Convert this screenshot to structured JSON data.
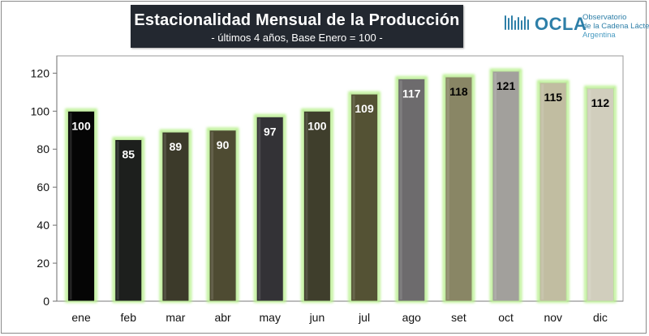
{
  "header": {
    "title": "Estacionalidad Mensual de la Producción",
    "subtitle": "- últimos 4 años, Base Enero = 100 -"
  },
  "logo": {
    "name": "OCLA",
    "line1": "Observatorio",
    "line2": "de la Cadena Láctea",
    "line3": "Argentina"
  },
  "chart_data": {
    "type": "bar",
    "title": "Estacionalidad Mensual de la Producción",
    "subtitle": "- últimos 4 años, Base Enero = 100 -",
    "categories": [
      "ene",
      "feb",
      "mar",
      "abr",
      "may",
      "jun",
      "jul",
      "ago",
      "set",
      "oct",
      "nov",
      "dic"
    ],
    "values": [
      100,
      85,
      89,
      90,
      97,
      100,
      109,
      117,
      118,
      121,
      115,
      112
    ],
    "labels": [
      "100",
      "85",
      "89",
      "90",
      "97",
      "100",
      "109",
      "117",
      "118",
      "121",
      "115",
      "112"
    ],
    "colors": [
      "#050505",
      "#1d1f1d",
      "#3c3a2a",
      "#4e4b32",
      "#333236",
      "#3f3e2c",
      "#545234",
      "#6d6b6d",
      "#898665",
      "#a2a09c",
      "#c1bda1",
      "#d1cebd"
    ],
    "label_colors": [
      "#ffffff",
      "#ffffff",
      "#ffffff",
      "#ffffff",
      "#ffffff",
      "#ffffff",
      "#ffffff",
      "#ffffff",
      "#000000",
      "#000000",
      "#000000",
      "#000000"
    ],
    "glow_color": "#b9f08f",
    "ylim": [
      0,
      125
    ],
    "yticks": [
      "0",
      "20",
      "40",
      "60",
      "80",
      "100",
      "120"
    ],
    "xlabel": "",
    "ylabel": "",
    "grid": false,
    "legend": "none"
  }
}
